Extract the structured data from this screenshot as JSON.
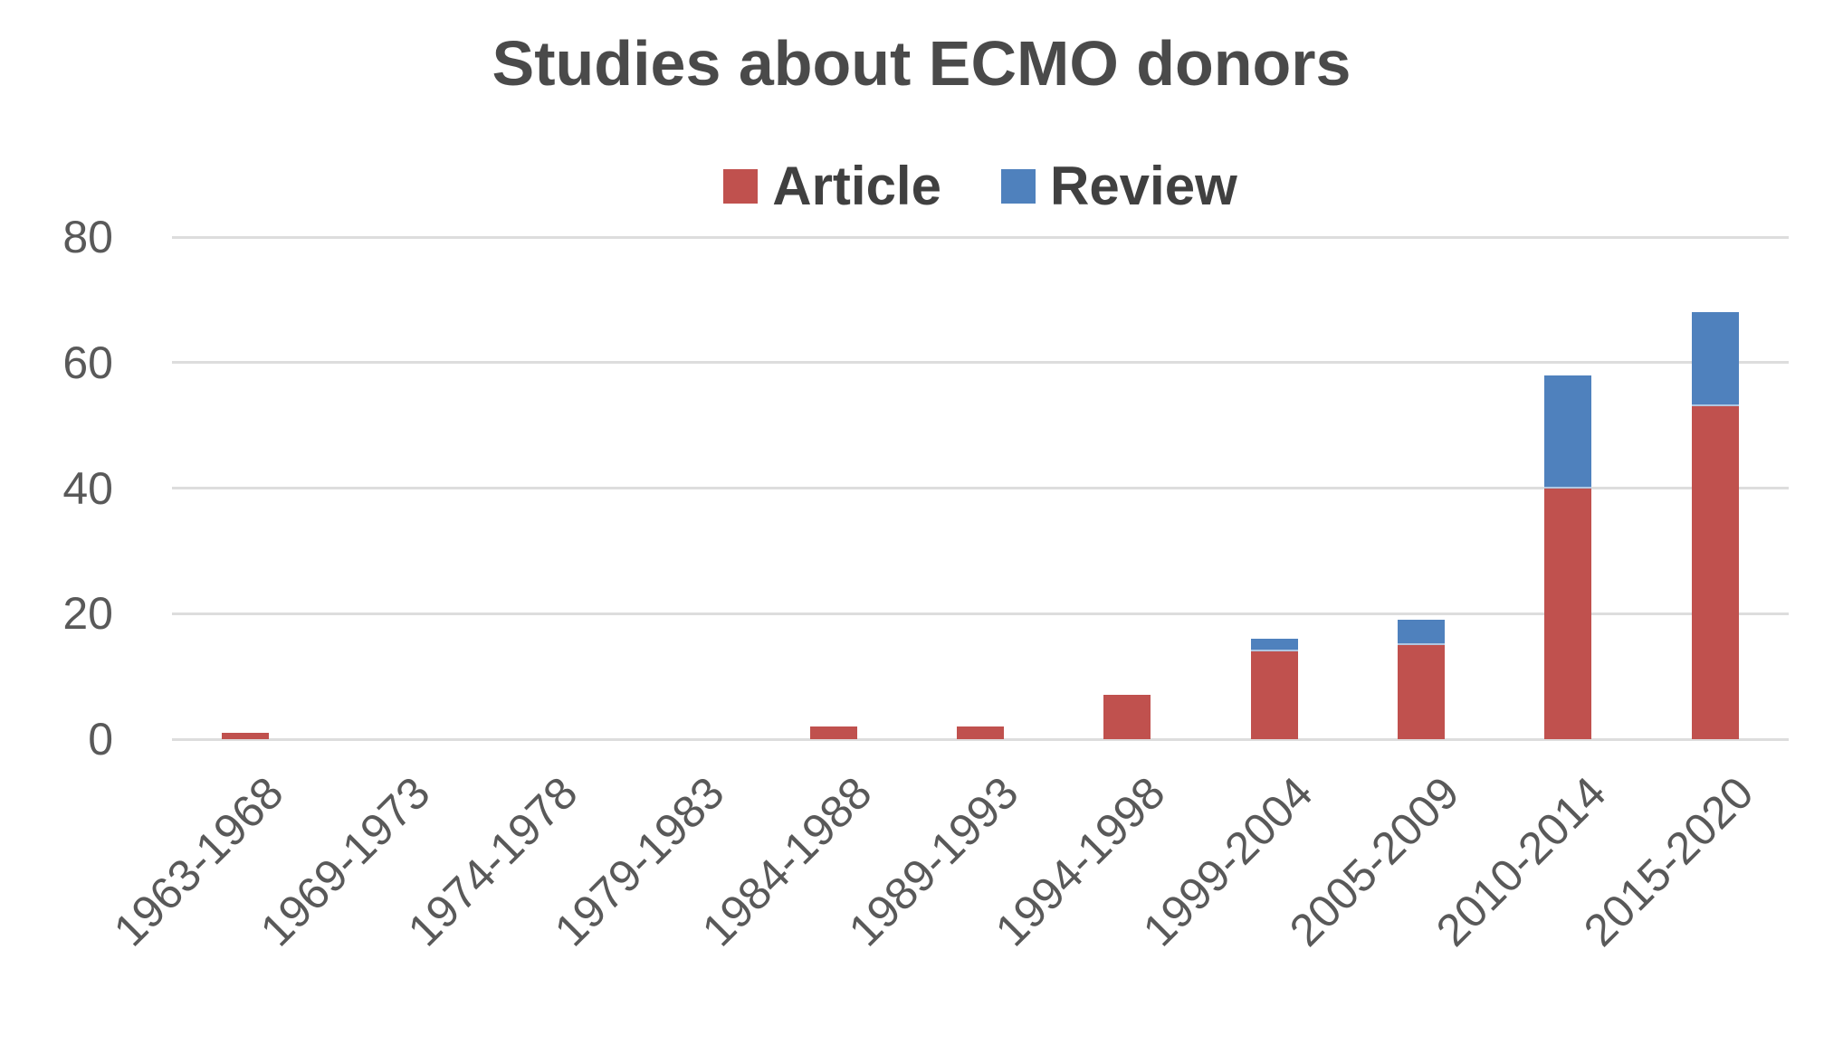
{
  "chart_data": {
    "type": "bar",
    "stacked": true,
    "title": "Studies about ECMO donors",
    "categories": [
      "1963-1968",
      "1969-1973",
      "1974-1978",
      "1979-1983",
      "1984-1988",
      "1989-1993",
      "1994-1998",
      "1999-2004",
      "2005-2009",
      "2010-2014",
      "2015-2020"
    ],
    "series": [
      {
        "name": "Article",
        "color": "#C0514E",
        "values": [
          1,
          0,
          0,
          0,
          2,
          2,
          7,
          14,
          15,
          40,
          53
        ]
      },
      {
        "name": "Review",
        "color": "#4F81BD",
        "values": [
          0,
          0,
          0,
          0,
          0,
          0,
          0,
          2,
          4,
          18,
          15
        ]
      }
    ],
    "totals": [
      1,
      0,
      0,
      0,
      2,
      2,
      7,
      16,
      19,
      58,
      68
    ],
    "xlabel": "",
    "ylabel": "",
    "ylim": [
      0,
      80
    ],
    "yticks": [
      0,
      20,
      40,
      60,
      80
    ],
    "grid": true,
    "legend_position": "top-center"
  },
  "colors": {
    "article": "#C0514E",
    "review": "#4F81BD",
    "gridline": "#DDDDDD",
    "title_text": "#4A4A4A",
    "legend_text": "#404040",
    "axis_text": "#595959",
    "background": "#FFFFFF"
  }
}
